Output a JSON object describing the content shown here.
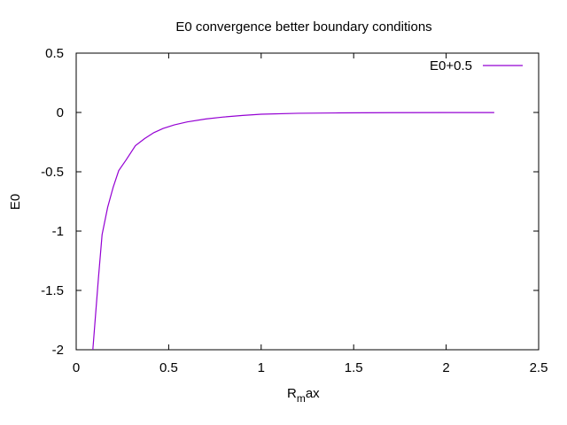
{
  "chart_data": {
    "type": "line",
    "title": "E0 convergence better boundary conditions",
    "xlabel": "R",
    "xlabel_sub": "m",
    "xlabel_rest": "ax",
    "ylabel": "E0",
    "xlim": [
      0,
      2.5
    ],
    "ylim": [
      -2,
      0.5
    ],
    "xticks": [
      "0",
      "0.5",
      "1",
      "1.5",
      "2",
      "2.5"
    ],
    "yticks": [
      "0.5",
      "0",
      "-0.5",
      "-1",
      "-1.5",
      "-2"
    ],
    "grid": false,
    "legend_position": "top-right",
    "series": [
      {
        "name": "E0+0.5",
        "color": "#9400d3",
        "x": [
          0.09,
          0.12,
          0.14,
          0.17,
          0.2,
          0.23,
          0.27,
          0.32,
          0.37,
          0.42,
          0.47,
          0.53,
          0.6,
          0.7,
          0.8,
          0.9,
          1.0,
          1.2,
          1.4,
          1.7,
          2.0,
          2.26
        ],
        "y": [
          -2.0,
          -1.4,
          -1.03,
          -0.8,
          -0.63,
          -0.49,
          -0.4,
          -0.28,
          -0.22,
          -0.17,
          -0.135,
          -0.105,
          -0.08,
          -0.055,
          -0.038,
          -0.025,
          -0.015,
          -0.007,
          -0.004,
          -0.002,
          -0.001,
          -0.001
        ]
      }
    ]
  }
}
